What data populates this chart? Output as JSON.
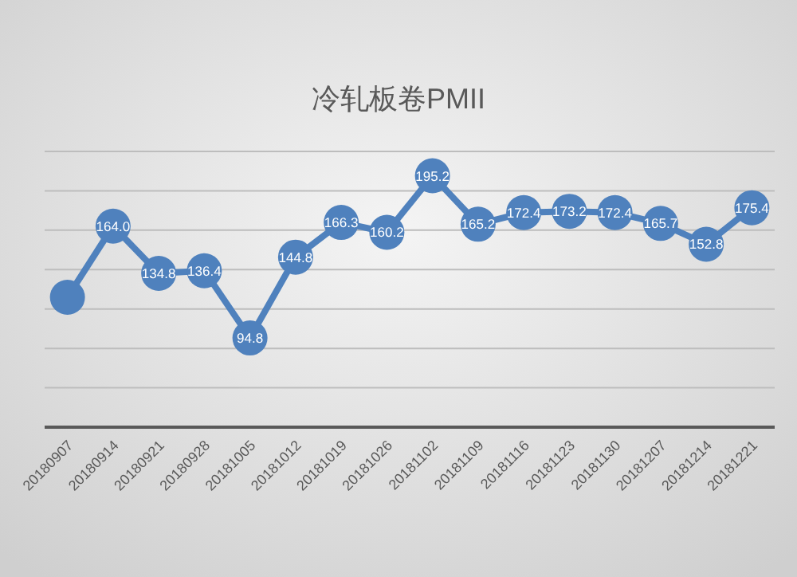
{
  "chart_data": {
    "type": "line",
    "title": "冷轧板卷PMII",
    "categories": [
      "20180907",
      "20180914",
      "20180921",
      "20180928",
      "20181005",
      "20181012",
      "20181019",
      "20181026",
      "20181102",
      "20181109",
      "20181116",
      "20181123",
      "20181130",
      "20181207",
      "20181214",
      "20181221"
    ],
    "series": [
      {
        "color": "#4f81bd",
        "values": [
          120,
          164.0,
          134.8,
          136.4,
          94.8,
          144.8,
          166.3,
          160.2,
          195.2,
          165.2,
          172.4,
          173.2,
          172.4,
          165.7,
          152.8,
          175.4
        ],
        "value_labels": [
          null,
          "164.0",
          "134.8",
          "136.4",
          "94.8",
          "144.8",
          "166.3",
          "160.2",
          "195.2",
          "165.2",
          "172.4",
          "173.2",
          "172.4",
          "165.7",
          "152.8",
          "175.4"
        ]
      }
    ],
    "grid": "y",
    "marker": "circle",
    "line_style": "solid"
  }
}
